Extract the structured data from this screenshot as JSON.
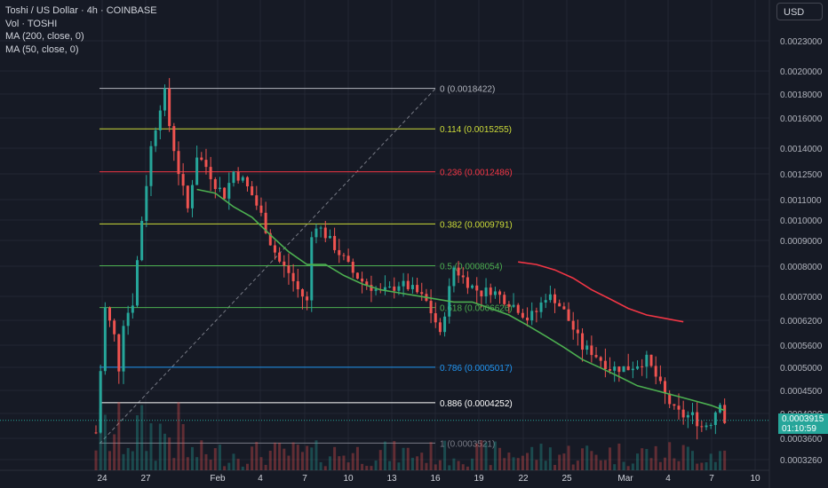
{
  "header": {
    "title": "Toshi / US Dollar · 4h · COINBASE",
    "indicators": [
      "Vol · TOSHI",
      "MA (200, close, 0)",
      "MA (50, close, 0)"
    ],
    "currency_button": "USD"
  },
  "price_tag": {
    "price": "0.0003915",
    "countdown": "01:10:59"
  },
  "colors": {
    "background": "#161a25",
    "up": "#26a69a",
    "down": "#ef5350",
    "ma50": "#4caf50",
    "ma200": "#f23645",
    "grid": "#232733"
  },
  "chart_data": {
    "type": "candlestick",
    "title": "Toshi / US Dollar · 4h · COINBASE",
    "y_scale": "log",
    "ylim": [
      0.00031,
      0.0026
    ],
    "y_ticks": [
      "0.0023000",
      "0.0020000",
      "0.0018000",
      "0.0016000",
      "0.0014000",
      "0.0012500",
      "0.0011000",
      "0.0010000",
      "0.0009000",
      "0.0008000",
      "0.0007000",
      "0.0006200",
      "0.0005600",
      "0.0005000",
      "0.0004500",
      "0.0004000",
      "0.0003600",
      "0.0003260"
    ],
    "x_ticks": [
      "24",
      "27",
      "Feb",
      "4",
      "7",
      "10",
      "13",
      "16",
      "19",
      "22",
      "25",
      "Mar",
      "4",
      "7",
      "10"
    ],
    "fibonacci": [
      {
        "label": "0 (0.0018422)",
        "level": 0.0018422,
        "color": "#b2b5be"
      },
      {
        "label": "0.114 (0.0015255)",
        "level": 0.0015255,
        "color": "#cddc39"
      },
      {
        "label": "0.236 (0.0012486)",
        "level": 0.0012486,
        "color": "#f23645"
      },
      {
        "label": "0.382 (0.0009791)",
        "level": 0.0009791,
        "color": "#cddc39"
      },
      {
        "label": "0.5 (0.0008054)",
        "level": 0.0008054,
        "color": "#4caf50"
      },
      {
        "label": "0.618 (0.0006626)",
        "level": 0.0006626,
        "color": "#4caf50"
      },
      {
        "label": "0.786 (0.0005017)",
        "level": 0.0005017,
        "color": "#2196f3"
      },
      {
        "label": "0.886 (0.0004252)",
        "level": 0.0004252,
        "color": "#ffffff"
      },
      {
        "label": "1 (0.0003521)",
        "level": 0.0003521,
        "color": "#787b86"
      }
    ],
    "close_path": [
      [
        0,
        0.00037
      ],
      [
        2,
        0.00066
      ],
      [
        4,
        0.00058
      ],
      [
        5,
        0.0005
      ],
      [
        6,
        0.00062
      ],
      [
        8,
        0.00068
      ],
      [
        10,
        0.001
      ],
      [
        12,
        0.0014
      ],
      [
        14,
        0.0017
      ],
      [
        15,
        0.0018
      ],
      [
        16,
        0.00155
      ],
      [
        18,
        0.00125
      ],
      [
        20,
        0.00105
      ],
      [
        22,
        0.00135
      ],
      [
        24,
        0.00128
      ],
      [
        26,
        0.00118
      ],
      [
        28,
        0.00112
      ],
      [
        30,
        0.00125
      ],
      [
        32,
        0.0012
      ],
      [
        34,
        0.00112
      ],
      [
        36,
        0.00102
      ],
      [
        38,
        0.0009
      ],
      [
        40,
        0.00082
      ],
      [
        42,
        0.00078
      ],
      [
        44,
        0.00072
      ],
      [
        46,
        0.00068
      ],
      [
        47,
        0.00092
      ],
      [
        48,
        0.00098
      ],
      [
        50,
        0.00093
      ],
      [
        52,
        0.00088
      ],
      [
        54,
        0.00083
      ],
      [
        56,
        0.00078
      ],
      [
        58,
        0.00075
      ],
      [
        60,
        0.00073
      ],
      [
        62,
        0.00071
      ],
      [
        64,
        0.00072
      ],
      [
        66,
        0.00074
      ],
      [
        68,
        0.00073
      ],
      [
        70,
        0.00071
      ],
      [
        72,
        0.00068
      ],
      [
        74,
        0.00062
      ],
      [
        75,
        0.00058
      ],
      [
        76,
        0.00065
      ],
      [
        78,
        0.0008
      ],
      [
        80,
        0.00076
      ],
      [
        82,
        0.00073
      ],
      [
        84,
        0.00071
      ],
      [
        86,
        0.00072
      ],
      [
        88,
        0.0007
      ],
      [
        90,
        0.00068
      ],
      [
        92,
        0.00066
      ],
      [
        94,
        0.00063
      ],
      [
        96,
        0.00065
      ],
      [
        98,
        0.0007
      ],
      [
        100,
        0.00069
      ],
      [
        102,
        0.00065
      ],
      [
        104,
        0.0006
      ],
      [
        106,
        0.00055
      ],
      [
        108,
        0.00054
      ],
      [
        110,
        0.00052
      ],
      [
        112,
        0.0005
      ],
      [
        114,
        0.0005
      ],
      [
        116,
        0.0005
      ],
      [
        118,
        0.00051
      ],
      [
        120,
        0.00052
      ],
      [
        122,
        0.00048
      ],
      [
        124,
        0.00044
      ],
      [
        126,
        0.00041
      ],
      [
        128,
        0.0004
      ],
      [
        130,
        0.0004
      ],
      [
        132,
        0.00038
      ],
      [
        134,
        0.00039
      ],
      [
        136,
        0.00043
      ],
      [
        137,
        0.00039
      ]
    ],
    "ma50": [
      [
        22,
        0.00115
      ],
      [
        26,
        0.00113
      ],
      [
        30,
        0.00106
      ],
      [
        34,
        0.00101
      ],
      [
        38,
        0.00093
      ],
      [
        42,
        0.00086
      ],
      [
        46,
        0.00081
      ],
      [
        50,
        0.00081
      ],
      [
        54,
        0.00077
      ],
      [
        58,
        0.00074
      ],
      [
        62,
        0.00072
      ],
      [
        66,
        0.00071
      ],
      [
        70,
        0.0007
      ],
      [
        74,
        0.00069
      ],
      [
        78,
        0.00068
      ],
      [
        82,
        0.00068
      ],
      [
        86,
        0.00066
      ],
      [
        90,
        0.00064
      ],
      [
        94,
        0.00061
      ],
      [
        98,
        0.00058
      ],
      [
        102,
        0.00055
      ],
      [
        106,
        0.00052
      ],
      [
        110,
        0.0005
      ],
      [
        114,
        0.00048
      ],
      [
        118,
        0.00046
      ],
      [
        122,
        0.00045
      ],
      [
        126,
        0.00044
      ],
      [
        130,
        0.00043
      ],
      [
        134,
        0.00042
      ],
      [
        137,
        0.00041
      ]
    ],
    "ma200": [
      [
        92,
        0.00082
      ],
      [
        96,
        0.00081
      ],
      [
        100,
        0.00079
      ],
      [
        104,
        0.00076
      ],
      [
        108,
        0.00072
      ],
      [
        112,
        0.00069
      ],
      [
        116,
        0.00066
      ],
      [
        120,
        0.00064
      ],
      [
        124,
        0.00063
      ],
      [
        128,
        0.00062
      ]
    ],
    "current_price": 0.0003915
  }
}
